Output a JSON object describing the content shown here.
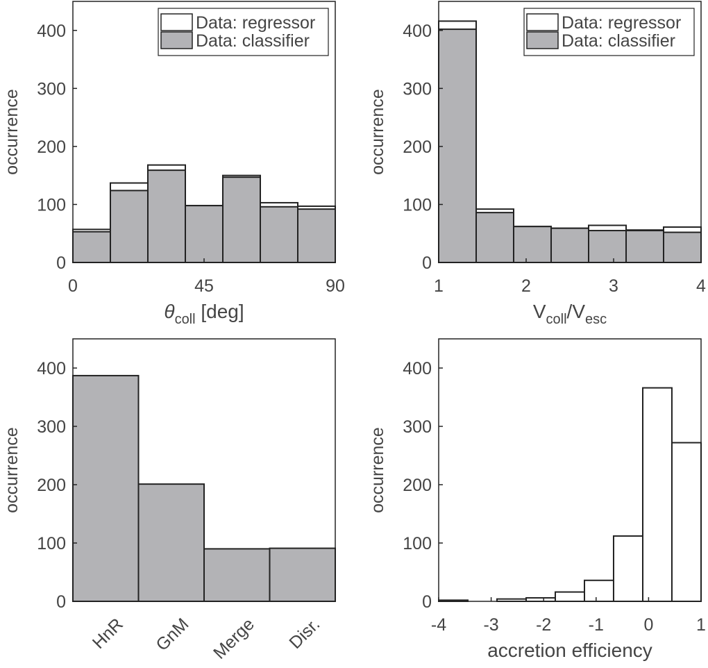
{
  "chart_data": [
    {
      "type": "histogram",
      "ylabel": "occurrence",
      "xlabel": [
        "θ",
        "coll",
        " [deg]"
      ],
      "bins": [
        0,
        12.857,
        25.714,
        38.571,
        51.429,
        64.286,
        77.143,
        90
      ],
      "series": [
        {
          "name": "Data: regressor",
          "color": "#ffffff",
          "values": [
            57,
            137,
            168,
            98,
            150,
            103,
            97
          ]
        },
        {
          "name": "Data: classifier",
          "color": "#b3b3b6",
          "values": [
            53,
            124,
            159,
            98,
            147,
            96,
            92
          ]
        }
      ],
      "xlim": [
        0,
        90
      ],
      "xticks": [
        0,
        45,
        90
      ],
      "ylim": [
        0,
        450
      ],
      "yticks": [
        0,
        100,
        200,
        300,
        400
      ],
      "legend": "upper right"
    },
    {
      "type": "histogram",
      "ylabel": "occurrence",
      "xlabel": [
        "V",
        "coll",
        "/V",
        "esc"
      ],
      "bins": [
        1,
        1.4286,
        1.8571,
        2.2857,
        2.7143,
        3.1429,
        3.5714,
        4
      ],
      "series": [
        {
          "name": "Data: regressor",
          "color": "#ffffff",
          "values": [
            416,
            92,
            62,
            59,
            64,
            56,
            61
          ]
        },
        {
          "name": "Data: classifier",
          "color": "#b3b3b6",
          "values": [
            402,
            86,
            62,
            59,
            55,
            55,
            52
          ]
        }
      ],
      "xlim": [
        1,
        4
      ],
      "xticks": [
        1,
        2,
        3,
        4
      ],
      "ylim": [
        0,
        450
      ],
      "yticks": [
        0,
        100,
        200,
        300,
        400
      ],
      "legend": "upper right"
    },
    {
      "type": "bar",
      "ylabel": "occurrence",
      "categories": [
        "HnR",
        "GnM",
        "Merge",
        "Disr."
      ],
      "values": [
        387,
        201,
        90,
        91
      ],
      "color": "#b3b3b6",
      "ylim": [
        0,
        450
      ],
      "yticks": [
        0,
        100,
        200,
        300,
        400
      ]
    },
    {
      "type": "histogram",
      "ylabel": "occurrence",
      "xlabel": [
        "accretion efficiency"
      ],
      "bins": [
        -4,
        -3.444,
        -2.889,
        -2.333,
        -1.778,
        -1.222,
        -0.667,
        -0.111,
        0.444,
        1
      ],
      "series": [
        {
          "color": "#ffffff",
          "values": [
            2,
            0,
            4,
            6,
            16,
            36,
            112,
            366,
            272
          ]
        }
      ],
      "xlim": [
        -4,
        1
      ],
      "xticks": [
        -4,
        -3,
        -2,
        -1,
        0,
        1
      ],
      "ylim": [
        0,
        450
      ],
      "yticks": [
        0,
        100,
        200,
        300,
        400
      ]
    }
  ]
}
